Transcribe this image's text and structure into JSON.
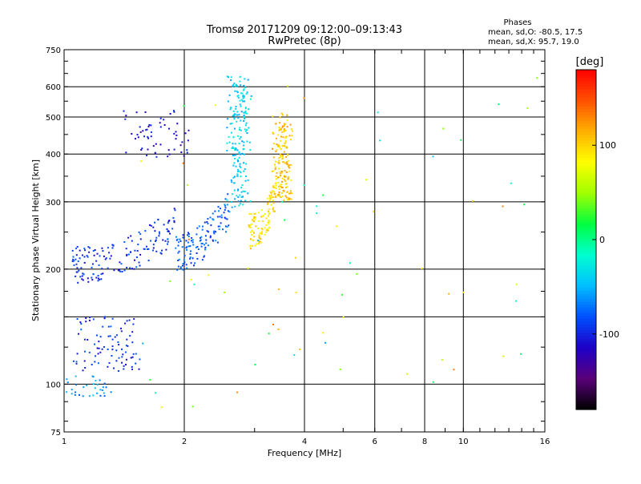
{
  "chart_data": {
    "type": "scatter",
    "title": "Tromsø 20171209 09:12:00–09:13:43",
    "subtitle": "RwPretec (8p)",
    "xlabel": "Frequency [MHz]",
    "ylabel": "Stationary phase Virtual Height [km]",
    "x_scale": "log",
    "y_scale": "log",
    "xlim": [
      1,
      16
    ],
    "ylim": [
      75,
      750
    ],
    "x_ticks": [
      1,
      2,
      4,
      6,
      8,
      10,
      16
    ],
    "x_tick_labels": [
      "1",
      "2",
      "4",
      "6",
      "8",
      "10",
      "16"
    ],
    "y_ticks": [
      75,
      100,
      200,
      300,
      400,
      500,
      600,
      750
    ],
    "y_tick_labels": [
      "75",
      "100",
      "200",
      "300",
      "400",
      "500",
      "600",
      "750"
    ],
    "grid": true,
    "stats": {
      "title": "Phases",
      "line1": "mean, sd,O: -80.5, 17.5",
      "line2": "mean, sd,X:  95.7, 19.0"
    },
    "colorbar": {
      "label": "[deg]",
      "range": [
        -180,
        180
      ],
      "ticks": [
        100,
        0,
        -100
      ],
      "tick_labels": [
        "100",
        "0",
        "-100"
      ],
      "colors": [
        "#000000",
        "#5a007a",
        "#1e00c8",
        "#0050ff",
        "#00bfff",
        "#00ffd0",
        "#00ff40",
        "#a0ff00",
        "#ffff00",
        "#ffb000",
        "#ff5000",
        "#ff0000"
      ]
    },
    "clusters": [
      {
        "name": "F-trace O low",
        "x": [
          1.05,
          1.9
        ],
        "y": [
          205,
          260
        ],
        "phase": -95,
        "n": 160
      },
      {
        "name": "F-trace O mid",
        "x": [
          1.9,
          2.6
        ],
        "y": [
          220,
          290
        ],
        "phase": -80,
        "n": 130
      },
      {
        "name": "F-trace steep O",
        "x": [
          2.55,
          2.95
        ],
        "y": [
          290,
          640
        ],
        "phase": -40,
        "n": 190
      },
      {
        "name": "F-trace X low",
        "x": [
          2.9,
          3.4
        ],
        "y": [
          250,
          310
        ],
        "phase": 95,
        "n": 110
      },
      {
        "name": "F-trace X steep",
        "x": [
          3.3,
          3.75
        ],
        "y": [
          300,
          510
        ],
        "phase": 105,
        "n": 170
      },
      {
        "name": "upper O trace",
        "x": [
          1.4,
          2.1
        ],
        "y": [
          390,
          520
        ],
        "phase": -110,
        "n": 60
      },
      {
        "name": "E-trace O",
        "x": [
          1.05,
          1.55
        ],
        "y": [
          108,
          150
        ],
        "phase": -95,
        "n": 90
      },
      {
        "name": "E-trace low",
        "x": [
          1.0,
          1.35
        ],
        "y": [
          93,
          105
        ],
        "phase": -60,
        "n": 35
      },
      {
        "name": "scattered",
        "x": [
          1.5,
          15.5
        ],
        "y": [
          80,
          640
        ],
        "phase": 40,
        "n": 70
      }
    ]
  }
}
